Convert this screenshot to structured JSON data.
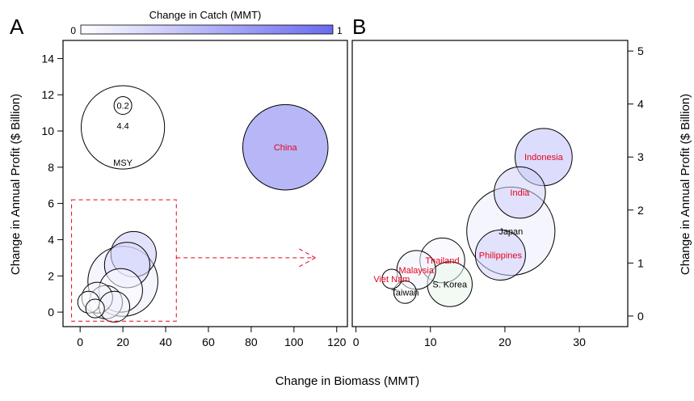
{
  "colorbar": {
    "title": "Change in Catch (MMT)",
    "min_label": "0",
    "max_label": "1",
    "color_low": "#ffffff",
    "color_high": "#6a6af0"
  },
  "shared_axes": {
    "xlabel": "Change in Biomass (MMT)",
    "ylabel_left": "Change in Annual Profit ($ Billion)",
    "ylabel_right": "Change in Annual Profit ($ Billion)"
  },
  "panel_a": {
    "label": "A"
  },
  "panel_b": {
    "label": "B"
  },
  "chart_data": [
    {
      "panel": "A",
      "type": "scatter",
      "encoding": "bubble",
      "xlabel": "Change in Biomass (MMT)",
      "ylabel": "Change in Annual Profit ($ Billion)",
      "xlim": [
        -8,
        125
      ],
      "ylim": [
        -0.8,
        15
      ],
      "xticks": [
        0,
        20,
        40,
        60,
        80,
        100,
        120
      ],
      "yticks": [
        0,
        2,
        4,
        6,
        8,
        10,
        12,
        14
      ],
      "size_legend": {
        "values": [
          0.2,
          4.4
        ],
        "labels": [
          "0.2",
          "4.4"
        ],
        "caption": "MSY",
        "center": {
          "x": 20,
          "y": 10.2
        }
      },
      "points": [
        {
          "label": "China",
          "x": 96,
          "y": 9.1,
          "size": 4.6,
          "catch": 0.88,
          "label_color": "#e8001c"
        },
        {
          "label": "",
          "x": 25,
          "y": 3.2,
          "size": 1.3,
          "catch": 0.35
        },
        {
          "label": "",
          "x": 22,
          "y": 2.6,
          "size": 1.3,
          "catch": 0.25
        },
        {
          "label": "",
          "x": 20,
          "y": 1.7,
          "size": 3.1,
          "catch": 0.12
        },
        {
          "label": "",
          "x": 19,
          "y": 1.2,
          "size": 1.2,
          "catch": 0.03
        },
        {
          "label": "",
          "x": 8,
          "y": 0.8,
          "size": 0.6,
          "catch": 0.06
        },
        {
          "label": "",
          "x": 12,
          "y": 0.55,
          "size": 0.7,
          "catch": 0.1
        },
        {
          "label": "",
          "x": 4,
          "y": 0.55,
          "size": 0.3,
          "catch": 0.02
        },
        {
          "label": "",
          "x": 16,
          "y": 0.3,
          "size": 0.6,
          "catch": 0.09
        },
        {
          "label": "",
          "x": 7,
          "y": 0.2,
          "size": 0.22,
          "catch": 0.03
        }
      ],
      "annotations": [
        {
          "type": "dashed-box",
          "x": [
            -4,
            45
          ],
          "y": [
            -0.5,
            6.2
          ],
          "color": "#e8001c"
        },
        {
          "type": "dashed-arrow",
          "from": {
            "x": 45,
            "y": 3.0
          },
          "to": {
            "x": 110,
            "y": 3.0
          },
          "color": "#e8001c"
        }
      ]
    },
    {
      "panel": "B",
      "type": "scatter",
      "encoding": "bubble",
      "xlabel": "Change in Biomass (MMT)",
      "ylabel": "Change in Annual Profit ($ Billion)",
      "xlim": [
        -0.5,
        36.5
      ],
      "ylim": [
        -0.2,
        5.2
      ],
      "xticks": [
        0,
        10,
        20,
        30
      ],
      "yticks": [
        0,
        1,
        2,
        3,
        4,
        5
      ],
      "points": [
        {
          "label": "Indonesia",
          "x": 25.2,
          "y": 3.0,
          "size": 1.3,
          "catch": 0.42,
          "label_color": "#e8001c"
        },
        {
          "label": "India",
          "x": 22.0,
          "y": 2.33,
          "size": 1.05,
          "catch": 0.32,
          "label_color": "#e8001c"
        },
        {
          "label": "Japan",
          "x": 20.8,
          "y": 1.6,
          "size": 3.1,
          "catch": 0.12,
          "label_color": "#000000"
        },
        {
          "label": "Philippines",
          "x": 19.4,
          "y": 1.15,
          "size": 1.0,
          "catch": 0.3,
          "label_color": "#e8001c"
        },
        {
          "label": "Thailand",
          "x": 11.6,
          "y": 1.05,
          "size": 0.8,
          "catch": 0.06,
          "label_color": "#e8001c"
        },
        {
          "label": "Malaysia",
          "x": 8.1,
          "y": 0.87,
          "size": 0.6,
          "catch": 0.1,
          "label_color": "#e8001c"
        },
        {
          "label": "S. Korea",
          "x": 12.6,
          "y": 0.6,
          "size": 0.8,
          "catch": 0.08,
          "label_color": "#000000",
          "fill": "#e6f6ea"
        },
        {
          "label": "Viet Nam",
          "x": 4.8,
          "y": 0.7,
          "size": 0.15,
          "catch": 0.02,
          "label_color": "#e8001c"
        },
        {
          "label": "Taiwan",
          "x": 6.6,
          "y": 0.45,
          "size": 0.2,
          "catch": 0.03,
          "label_color": "#000000"
        }
      ]
    }
  ]
}
